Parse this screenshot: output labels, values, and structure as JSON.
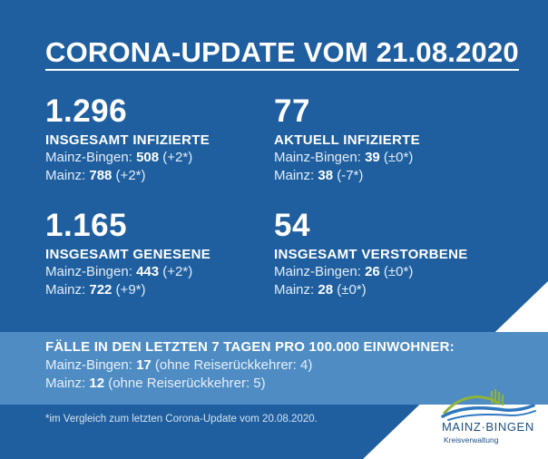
{
  "title": "CORONA-UPDATE VOM 21.08.2020",
  "stats": [
    {
      "number": "1.296",
      "label": "INSGESAMT INFIZIERTE",
      "mb_prefix": "Mainz-Bingen: ",
      "mb_value": "508",
      "mb_change": " (+2*)",
      "mz_prefix": "Mainz: ",
      "mz_value": "788",
      "mz_change": " (+2*)"
    },
    {
      "number": "77",
      "label": "AKTUELL INFIZIERTE",
      "mb_prefix": "Mainz-Bingen: ",
      "mb_value": "39",
      "mb_change": " (±0*)",
      "mz_prefix": "Mainz: ",
      "mz_value": "38",
      "mz_change": " (-7*)"
    },
    {
      "number": "1.165",
      "label": "INSGESAMT GENESENE",
      "mb_prefix": "Mainz-Bingen: ",
      "mb_value": "443",
      "mb_change": " (+2*)",
      "mz_prefix": "Mainz: ",
      "mz_value": "722",
      "mz_change": " (+9*)"
    },
    {
      "number": "54",
      "label": "INSGESAMT VERSTORBENE",
      "mb_prefix": "Mainz-Bingen: ",
      "mb_value": "26",
      "mb_change": " (±0*)",
      "mz_prefix": "Mainz: ",
      "mz_value": "28",
      "mz_change": " (±0*)"
    }
  ],
  "band": {
    "heading": "FÄLLE IN DEN LETZTEN 7 TAGEN PRO 100.000 EINWOHNER:",
    "mb_prefix": "Mainz-Bingen: ",
    "mb_value": "17",
    "mb_note": " (ohne Reiserückkehrer: 4)",
    "mz_prefix": "Mainz: ",
    "mz_value": "12",
    "mz_note": " (ohne Reiserückkehrer: 5)"
  },
  "footnote": "*im Vergleich zum letzten Corona-Update vom 20.08.2020.",
  "logo": {
    "name": "MAINZ·BINGEN",
    "subtitle": "Kreisverwaltung",
    "icon": "landscape-hills-icon"
  },
  "colors": {
    "background": "#1f5f9f",
    "band": "#4f8cc4",
    "corner": "#ffffff",
    "logo_text": "#1b4f86",
    "logo_green": "#8fb33a",
    "logo_blue": "#2f78c0"
  }
}
